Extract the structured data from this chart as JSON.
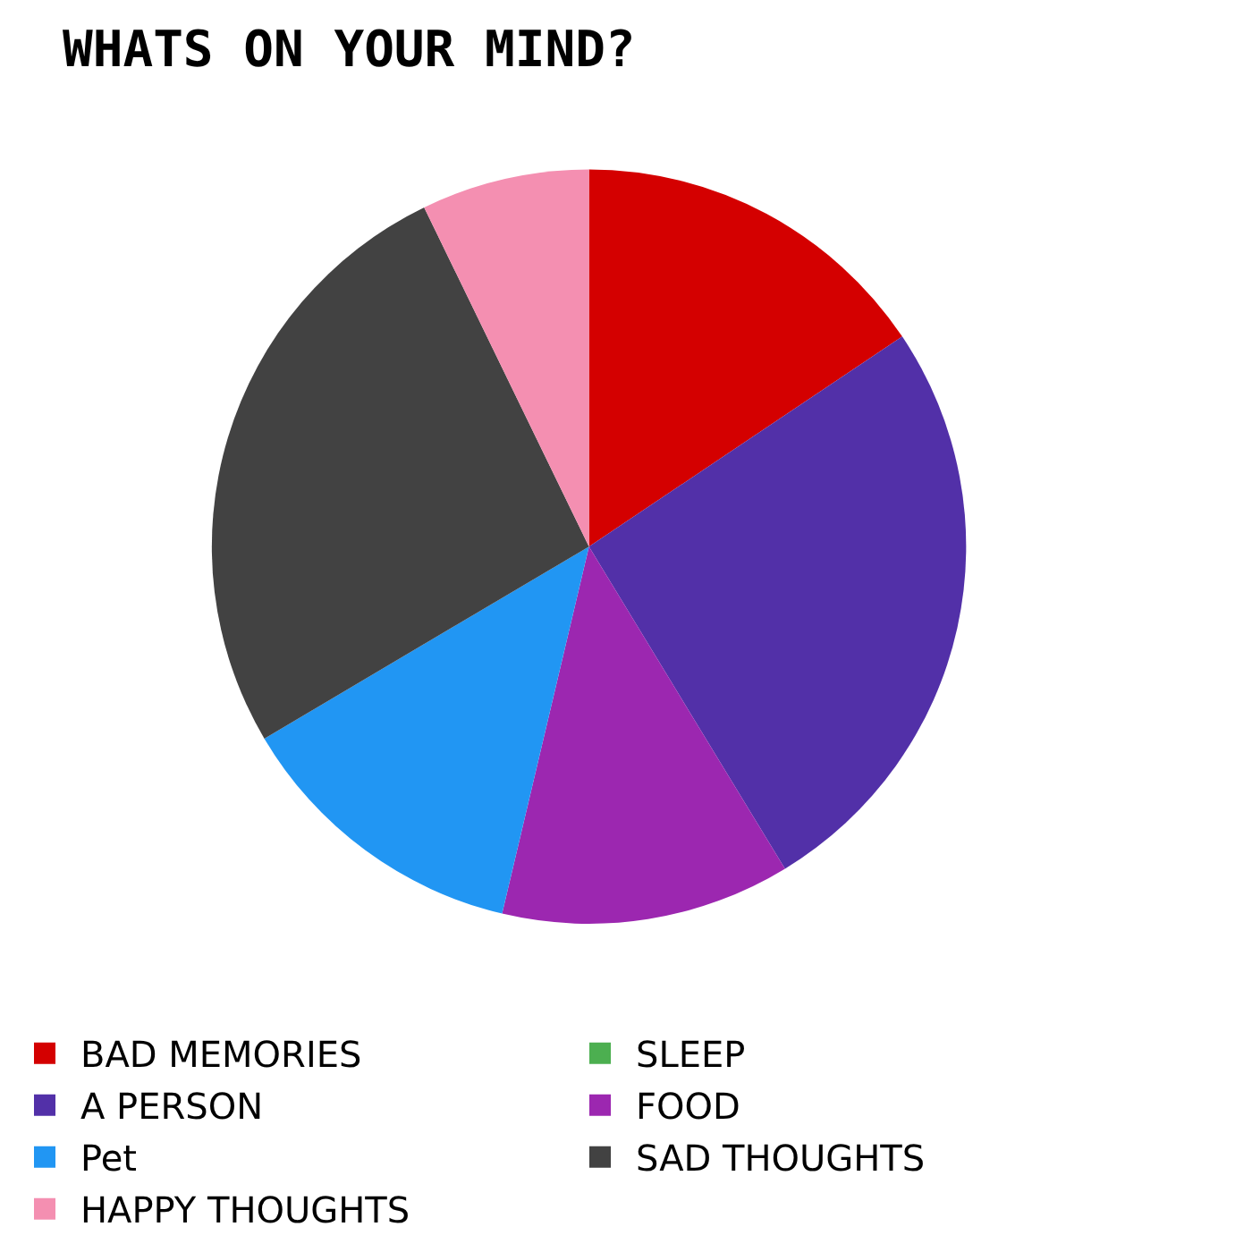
{
  "chart_data": {
    "type": "pie",
    "title": "WHATS ON YOUR MIND?",
    "categories": [
      "BAD MEMORIES",
      "SLEEP",
      "A PERSON",
      "FOOD",
      "Pet",
      "SAD THOUGHTS",
      "HAPPY THOUGHTS"
    ],
    "values": [
      15.6,
      0,
      25.7,
      12.4,
      12.8,
      26.3,
      7.2
    ],
    "colors": [
      "#d40000",
      "#4caf50",
      "#5230a8",
      "#9c27b0",
      "#2196f3",
      "#424242",
      "#f48fb1"
    ],
    "legend": "bottom left"
  }
}
